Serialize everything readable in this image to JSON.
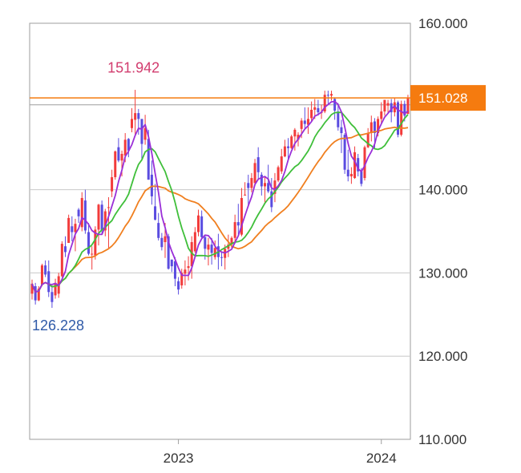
{
  "chart_data": {
    "type": "candlestick",
    "y_ticks": [
      "160.000",
      "140.000",
      "130.000",
      "120.000",
      "110.000"
    ],
    "ylim": [
      110,
      160
    ],
    "x_ticks": [
      {
        "label": "2023",
        "index": 44
      },
      {
        "label": "2024",
        "index": 105
      }
    ],
    "high_label": {
      "text": "151.942",
      "value": 151.942,
      "index": 31,
      "color": "#d23c6e"
    },
    "low_label": {
      "text": "126.228",
      "value": 126.228,
      "index": 2,
      "color": "#2f5aa8"
    },
    "current": {
      "text": "151.028",
      "value": 151.028,
      "color": "#f57b0f"
    },
    "reference_line": {
      "value": 150.2,
      "color": "#9e9e9e"
    },
    "colors": {
      "up": "#f23b3b",
      "down": "#5a4ce0",
      "ma1": "#9a2fd8",
      "ma2": "#3fbf3a",
      "ma3": "#f07f1f",
      "grid": "#c8c8c8",
      "frame": "#9e9e9e"
    },
    "candles": [
      [
        127.5,
        129.2,
        126.8,
        128.7
      ],
      [
        128.4,
        128.8,
        126.2,
        126.7
      ],
      [
        126.7,
        128.4,
        126.6,
        128.1
      ],
      [
        128.6,
        131.1,
        128.4,
        130.9
      ],
      [
        130.9,
        131.5,
        129.5,
        129.8
      ],
      [
        130.2,
        131.5,
        127.1,
        127.7
      ],
      [
        127.7,
        128.5,
        125.8,
        126.5
      ],
      [
        127.3,
        129.3,
        126.9,
        128.8
      ],
      [
        127.5,
        130.0,
        127.0,
        129.6
      ],
      [
        129.6,
        133.8,
        129.5,
        133.5
      ],
      [
        133.2,
        134.4,
        131.9,
        132.5
      ],
      [
        133.6,
        137.0,
        133.6,
        136.6
      ],
      [
        135.6,
        136.8,
        133.8,
        134.9
      ],
      [
        134.9,
        136.5,
        132.6,
        135.9
      ],
      [
        137.6,
        137.8,
        136.0,
        136.8
      ],
      [
        135.5,
        139.7,
        135.0,
        139.0
      ],
      [
        138.7,
        140.0,
        134.7,
        135.1
      ],
      [
        134.9,
        136.0,
        132.1,
        132.3
      ],
      [
        132.3,
        133.2,
        130.4,
        132.3
      ],
      [
        132.1,
        135.6,
        131.6,
        135.2
      ],
      [
        135.2,
        138.3,
        133.3,
        138.2
      ],
      [
        138.2,
        138.7,
        134.6,
        135.1
      ],
      [
        135.1,
        137.7,
        134.4,
        137.4
      ],
      [
        137.8,
        139.1,
        133.0,
        137.9
      ],
      [
        139.8,
        142.4,
        139.1,
        141.5
      ],
      [
        141.5,
        144.7,
        141.2,
        144.6
      ],
      [
        145.1,
        146.2,
        143.3,
        143.5
      ],
      [
        143.5,
        144.7,
        141.6,
        144.3
      ],
      [
        144.1,
        146.8,
        143.3,
        146.0
      ],
      [
        146.1,
        146.2,
        143.9,
        144.7
      ],
      [
        147.4,
        149.8,
        146.9,
        148.5
      ],
      [
        148.4,
        152.0,
        146.6,
        149.2
      ],
      [
        149.2,
        149.7,
        146.6,
        148.5
      ],
      [
        148.5,
        148.5,
        143.5,
        145.5
      ],
      [
        146.0,
        149.0,
        145.4,
        147.4
      ],
      [
        146.1,
        147.2,
        141.2,
        141.2
      ],
      [
        141.8,
        143.5,
        138.2,
        139.2
      ],
      [
        138.0,
        140.7,
        136.3,
        136.4
      ],
      [
        136.0,
        137.2,
        133.9,
        134.2
      ],
      [
        134.2,
        134.8,
        132.7,
        133.1
      ],
      [
        133.7,
        136.0,
        131.8,
        134.4
      ],
      [
        134.4,
        134.7,
        130.4,
        130.5
      ],
      [
        131.6,
        131.6,
        130.1,
        130.8
      ],
      [
        131.4,
        131.9,
        128.4,
        129.3
      ],
      [
        129.0,
        129.5,
        127.4,
        128.0
      ],
      [
        128.5,
        130.5,
        128.1,
        130.0
      ],
      [
        129.9,
        131.5,
        128.5,
        130.4
      ],
      [
        130.6,
        132.0,
        129.1,
        130.8
      ],
      [
        130.8,
        134.4,
        129.3,
        133.7
      ],
      [
        132.6,
        135.5,
        132.4,
        134.9
      ],
      [
        134.9,
        137.6,
        134.4,
        136.9
      ],
      [
        136.8,
        137.5,
        134.2,
        134.3
      ],
      [
        134.3,
        134.5,
        131.6,
        132.9
      ],
      [
        132.8,
        134.2,
        130.9,
        133.4
      ],
      [
        133.4,
        134.2,
        131.0,
        132.4
      ],
      [
        131.9,
        133.9,
        131.6,
        133.0
      ],
      [
        133.2,
        134.7,
        130.4,
        131.9
      ],
      [
        131.9,
        132.6,
        130.8,
        131.8
      ],
      [
        131.8,
        133.4,
        130.4,
        132.9
      ],
      [
        132.9,
        134.6,
        131.9,
        133.4
      ],
      [
        133.4,
        134.4,
        133.0,
        134.2
      ],
      [
        134.2,
        137.0,
        133.5,
        136.1
      ],
      [
        136.1,
        138.3,
        134.6,
        135.7
      ],
      [
        134.6,
        140.2,
        134.4,
        139.0
      ],
      [
        139.3,
        140.9,
        139.3,
        139.4
      ],
      [
        140.8,
        141.8,
        137.9,
        140.2
      ],
      [
        140.2,
        142.0,
        139.7,
        141.4
      ],
      [
        140.8,
        143.7,
        140.5,
        143.2
      ],
      [
        143.9,
        145.1,
        141.2,
        142.1
      ],
      [
        141.8,
        142.1,
        139.3,
        140.4
      ],
      [
        140.4,
        141.6,
        138.4,
        140.8
      ],
      [
        140.8,
        143.0,
        139.6,
        139.8
      ],
      [
        139.8,
        141.4,
        137.3,
        137.9
      ],
      [
        139.5,
        142.0,
        138.5,
        141.1
      ],
      [
        141.1,
        142.9,
        140.9,
        142.7
      ],
      [
        142.2,
        144.9,
        141.9,
        144.0
      ],
      [
        144.0,
        146.0,
        143.9,
        145.2
      ],
      [
        145.2,
        146.2,
        143.4,
        145.0
      ],
      [
        145.0,
        146.6,
        144.9,
        146.4
      ],
      [
        146.4,
        147.4,
        144.7,
        147.2
      ],
      [
        146.0,
        146.9,
        145.2,
        146.6
      ],
      [
        147.3,
        148.6,
        146.2,
        148.3
      ],
      [
        148.3,
        149.9,
        147.3,
        147.9
      ],
      [
        147.8,
        149.9,
        146.7,
        148.5
      ],
      [
        148.6,
        150.6,
        148.2,
        149.6
      ],
      [
        149.6,
        150.9,
        148.5,
        149.9
      ],
      [
        149.8,
        150.8,
        148.9,
        149.3
      ],
      [
        149.3,
        150.2,
        148.5,
        149.3
      ],
      [
        149.4,
        151.9,
        149.2,
        151.4
      ],
      [
        151.4,
        151.9,
        150.3,
        151.3
      ],
      [
        151.3,
        151.9,
        150.7,
        151.5
      ],
      [
        150.9,
        151.1,
        148.4,
        149.5
      ],
      [
        149.4,
        150.4,
        147.1,
        147.5
      ],
      [
        147.5,
        148.4,
        144.4,
        146.8
      ],
      [
        146.6,
        146.8,
        141.9,
        142.4
      ],
      [
        142.4,
        144.8,
        141.0,
        141.6
      ],
      [
        141.6,
        142.7,
        140.7,
        141.9
      ],
      [
        141.4,
        145.2,
        141.3,
        144.5
      ],
      [
        143.8,
        144.3,
        141.6,
        142.2
      ],
      [
        142.2,
        142.6,
        140.4,
        140.7
      ],
      [
        141.4,
        145.3,
        141.1,
        145.1
      ],
      [
        145.1,
        147.4,
        145.0,
        146.8
      ],
      [
        146.8,
        148.9,
        145.8,
        148.1
      ],
      [
        148.2,
        148.6,
        145.0,
        146.8
      ],
      [
        146.8,
        148.8,
        146.4,
        148.5
      ],
      [
        148.5,
        150.5,
        147.9,
        149.4
      ],
      [
        149.4,
        150.8,
        148.9,
        150.8
      ],
      [
        150.1,
        150.8,
        149.2,
        150.4
      ],
      [
        150.4,
        150.9,
        148.1,
        149.3
      ],
      [
        149.3,
        151.0,
        148.8,
        150.5
      ],
      [
        150.5,
        150.7,
        146.3,
        146.6
      ],
      [
        146.6,
        150.7,
        146.4,
        150.3
      ],
      [
        150.3,
        150.7,
        148.2,
        148.9
      ],
      [
        149.1,
        151.4,
        149.1,
        151.0
      ]
    ]
  }
}
